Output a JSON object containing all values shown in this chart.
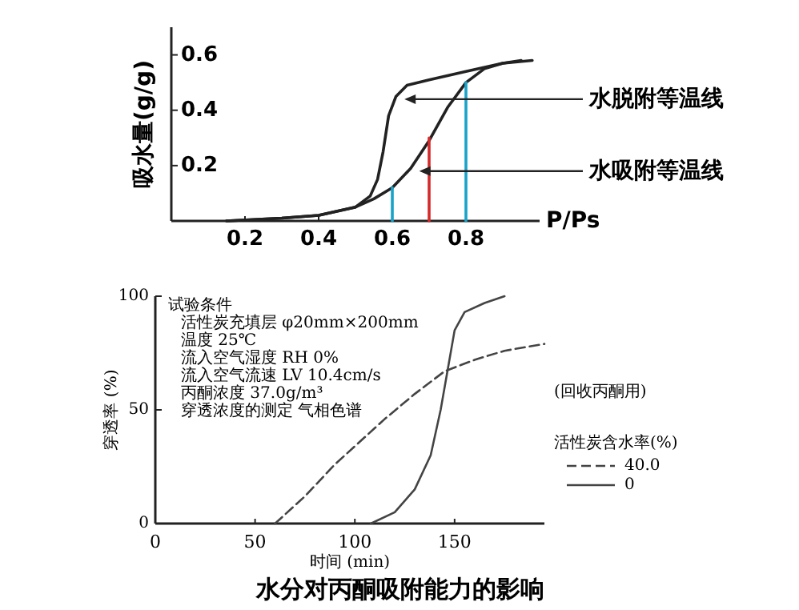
{
  "chart_data": [
    {
      "type": "line",
      "xlabel": "P/Ps",
      "ylabel": "吸水量(g/g)",
      "xlim": [
        0,
        1.0
      ],
      "ylim": [
        0,
        0.7
      ],
      "xticks": [
        0.2,
        0.4,
        0.6,
        0.8
      ],
      "yticks": [
        0.2,
        0.4,
        0.6
      ],
      "series": [
        {
          "color": "#222222",
          "x": [
            0.15,
            0.3,
            0.4,
            0.5,
            0.54,
            0.56,
            0.575,
            0.59,
            0.61,
            0.64,
            0.7,
            0.8,
            0.9,
            0.98
          ],
          "values": [
            0,
            0.01,
            0.02,
            0.05,
            0.09,
            0.15,
            0.25,
            0.38,
            0.45,
            0.49,
            0.51,
            0.54,
            0.57,
            0.58
          ]
        },
        {
          "color": "#222222",
          "x": [
            0.15,
            0.3,
            0.4,
            0.5,
            0.55,
            0.6,
            0.65,
            0.7,
            0.75,
            0.8,
            0.85,
            0.9,
            0.95
          ],
          "values": [
            0,
            0.01,
            0.02,
            0.05,
            0.08,
            0.12,
            0.19,
            0.29,
            0.41,
            0.5,
            0.55,
            0.57,
            0.58
          ]
        },
        {
          "color": "#1aa3c8",
          "x": [
            0.6,
            0.6
          ],
          "values": [
            0,
            0.12
          ]
        },
        {
          "color": "#d62a2a",
          "x": [
            0.7,
            0.7
          ],
          "values": [
            0,
            0.3
          ]
        },
        {
          "color": "#1aa3c8",
          "x": [
            0.8,
            0.8
          ],
          "values": [
            0,
            0.5
          ]
        }
      ],
      "annotations": [
        {
          "text": "水脱附等温线",
          "x": 0.62,
          "y": 0.44
        },
        {
          "text": "水吸附等温线",
          "x": 0.66,
          "y": 0.18
        }
      ]
    },
    {
      "type": "line",
      "xlabel": "时间 (min)",
      "ylabel": "穿透率 (%)",
      "xlim": [
        0,
        195
      ],
      "ylim": [
        0,
        100
      ],
      "xticks": [
        0,
        50,
        100,
        150
      ],
      "yticks": [
        0,
        50,
        100
      ],
      "legend": "right",
      "legend_title": "活性炭含水率(%)",
      "series": [
        {
          "name": "40.0",
          "color": "#444444",
          "line_style": "dashed",
          "x": [
            60,
            75,
            90,
            105,
            115,
            130,
            145,
            160,
            175,
            195
          ],
          "values": [
            0,
            12,
            26,
            38,
            46,
            57,
            67,
            72,
            76,
            79
          ]
        },
        {
          "name": "0",
          "color": "#444444",
          "line_style": "solid",
          "x": [
            108,
            120,
            130,
            138,
            143,
            147,
            150,
            155,
            165,
            175
          ],
          "values": [
            0,
            5,
            15,
            30,
            50,
            70,
            85,
            93,
            97,
            100
          ]
        }
      ],
      "annotations": [
        "试验条件",
        "活性炭充填层 φ20mm×200mm",
        "温度 25℃",
        "流入空气湿度 RH 0%",
        "流入空气流速 LV 10.4cm/s",
        "丙酮浓度 37.0g/m³",
        "穿透浓度的测定 气相色谱",
        "(回收丙酮用)",
        "水分对丙酮吸附能力的影响"
      ]
    }
  ]
}
